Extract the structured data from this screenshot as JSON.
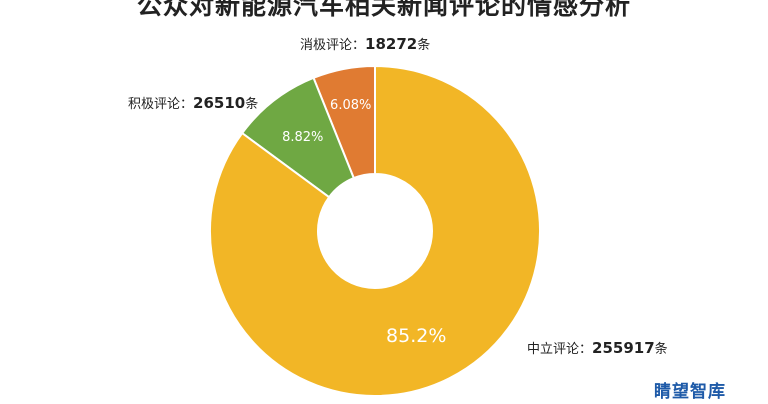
{
  "chart_data": {
    "type": "pie",
    "title": "公众对新能源汽车相关新闻评论的情感分析",
    "categories": [
      "消极评论",
      "积极评论",
      "中立评论"
    ],
    "values": [
      18272,
      26510,
      255917
    ],
    "percent_labels": [
      "6.08%",
      "8.82%",
      "85.2%"
    ],
    "counts_display": [
      "18272",
      "26510",
      "255917"
    ],
    "unit": "条",
    "callout_labels": [
      "消极评论：",
      "积极评论：",
      "中立评论："
    ],
    "colors": [
      "#e07b32",
      "#6fa843",
      "#f2b626"
    ],
    "donut": true
  },
  "watermark": "睛望智库"
}
